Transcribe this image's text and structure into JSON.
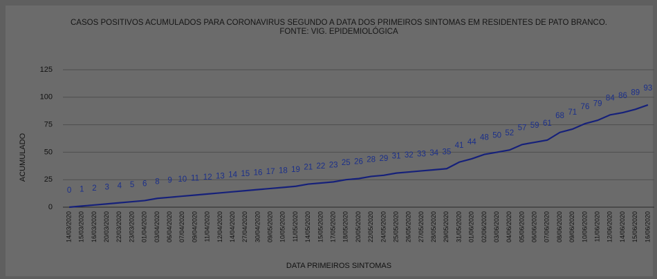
{
  "chart_data": {
    "type": "line",
    "title": "CASOS POSITIVOS ACUMULADOS PARA CORONAVIRUS SEGUNDO A DATA DOS PRIMEIROS SINTOMAS EM RESIDENTES DE PATO BRANCO.",
    "subtitle": "FONTE: VIG. EPIDEMIOLÓGICA",
    "x_label": "DATA PRIMEIROS SINTOMAS",
    "y_label": "ACUMULADO",
    "categories": [
      "14/03/2020",
      "15/03/2020",
      "16/03/2020",
      "20/03/2020",
      "22/03/2020",
      "23/03/2020",
      "01/04/2020",
      "03/04/2020",
      "06/04/2020",
      "07/04/2020",
      "09/04/2020",
      "11/04/2020",
      "12/04/2020",
      "14/04/2020",
      "27/04/2020",
      "30/04/2020",
      "09/05/2020",
      "10/05/2020",
      "11/05/2020",
      "14/05/2020",
      "15/05/2020",
      "17/05/2020",
      "18/05/2020",
      "20/05/2020",
      "22/05/2020",
      "24/05/2020",
      "25/05/2020",
      "26/05/2020",
      "27/05/2020",
      "28/05/2020",
      "29/05/2020",
      "31/05/2020",
      "01/06/2020",
      "02/06/2020",
      "03/06/2020",
      "04/06/2020",
      "05/06/2020",
      "06/06/2020",
      "07/06/2020",
      "08/06/2020",
      "09/06/2020",
      "10/06/2020",
      "11/06/2020",
      "12/06/2020",
      "14/06/2020",
      "15/06/2020",
      "16/06/2020"
    ],
    "values": [
      0,
      1,
      2,
      3,
      4,
      5,
      6,
      8,
      9,
      10,
      11,
      12,
      13,
      14,
      15,
      16,
      17,
      18,
      19,
      21,
      22,
      23,
      25,
      26,
      28,
      29,
      31,
      32,
      33,
      34,
      35,
      41,
      44,
      48,
      50,
      52,
      57,
      59,
      61,
      68,
      71,
      76,
      79,
      84,
      86,
      89,
      93
    ],
    "color": "#15207a",
    "ylim": [
      0,
      125
    ],
    "yticks": [
      0,
      25,
      50,
      75,
      100,
      125
    ],
    "grid": true
  }
}
